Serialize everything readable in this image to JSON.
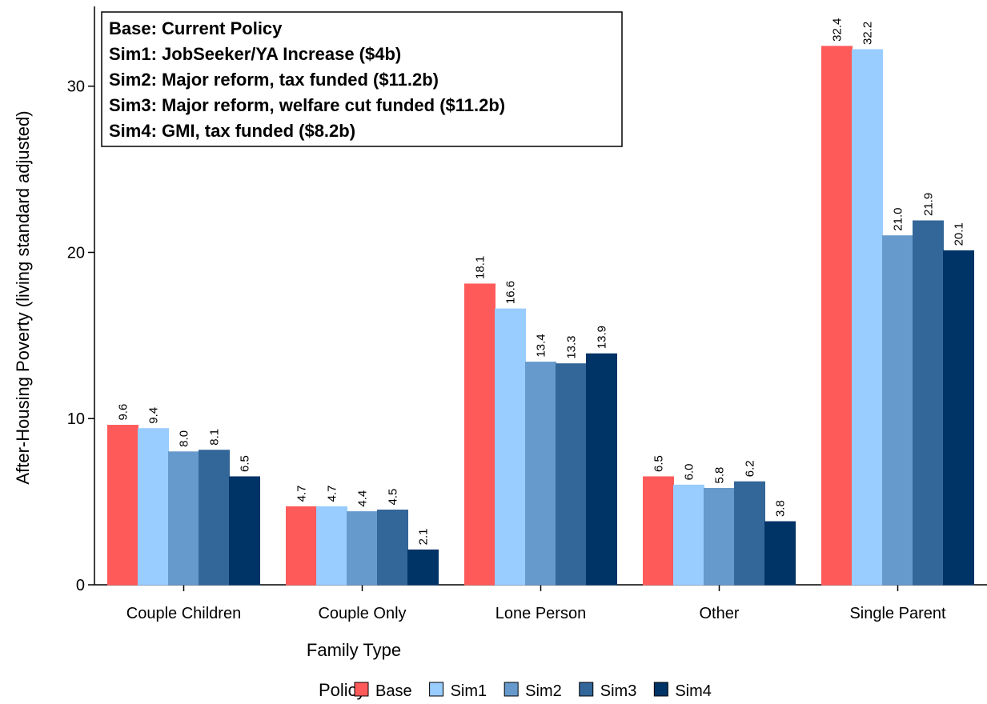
{
  "chart_data": {
    "type": "bar",
    "annotation": [
      "Base: Current Policy",
      "Sim1: JobSeeker/YA Increase ($4b)",
      "Sim2: Major reform, tax funded ($11.2b)",
      "Sim3: Major reform, welfare cut funded ($11.2b)",
      "Sim4: GMI, tax funded ($8.2b)"
    ],
    "xlabel": "Family Type",
    "ylabel": "After-Housing Poverty (living standard adjusted)",
    "legend_title": "Policy",
    "categories": [
      "Couple Children",
      "Couple Only",
      "Lone Person",
      "Other",
      "Single Parent"
    ],
    "series": [
      {
        "name": "Base",
        "color": "#ff5a5a",
        "values": [
          9.6,
          4.7,
          18.1,
          6.5,
          32.4
        ],
        "value_labels": [
          "9.6",
          "4.7",
          "18.1",
          "6.5",
          "32.4"
        ]
      },
      {
        "name": "Sim1",
        "color": "#99ccff",
        "values": [
          9.4,
          4.7,
          16.6,
          6.0,
          32.2
        ],
        "value_labels": [
          "9.4",
          "4.7",
          "16.6",
          "6.0",
          "32.2"
        ]
      },
      {
        "name": "Sim2",
        "color": "#6699cc",
        "values": [
          8.0,
          4.4,
          13.4,
          5.8,
          21.0
        ],
        "value_labels": [
          "8.0",
          "4.4",
          "13.4",
          "5.8",
          "21.0"
        ]
      },
      {
        "name": "Sim3",
        "color": "#336699",
        "values": [
          8.1,
          4.5,
          13.3,
          6.2,
          21.9
        ],
        "value_labels": [
          "8.1",
          "4.5",
          "13.3",
          "6.2",
          "21.9"
        ]
      },
      {
        "name": "Sim4",
        "color": "#003366",
        "values": [
          6.5,
          2.1,
          13.9,
          3.8,
          20.1
        ],
        "value_labels": [
          "6.5",
          "2.1",
          "13.9",
          "3.8",
          "20.1"
        ]
      }
    ],
    "ylim": [
      0,
      34.8
    ],
    "yticks": [
      0,
      10,
      20,
      30
    ],
    "grid": false,
    "legend": "bottom"
  }
}
